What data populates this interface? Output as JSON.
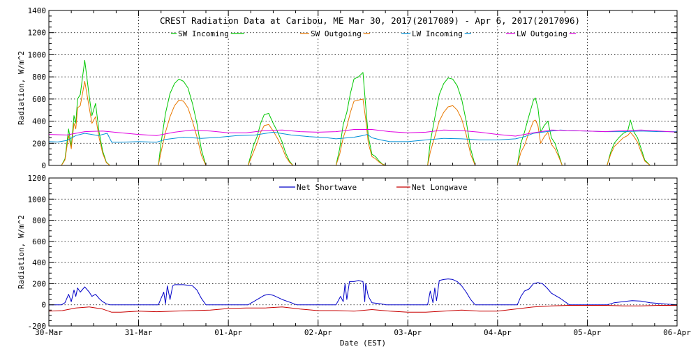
{
  "chart_data": {
    "title": "CREST Radiation Data at Caribou, ME   Mar 30, 2017(2017089) - Apr  6, 2017(2017096)",
    "xlabel": "Date (EST)",
    "x_unit": "day offset from 30-Mar",
    "x_tick_labels": [
      "30-Mar",
      "31-Mar",
      "01-Apr",
      "02-Apr",
      "03-Apr",
      "04-Apr",
      "05-Apr",
      "06-Apr"
    ],
    "xlim": [
      0,
      7
    ],
    "grid": true,
    "colors": {
      "sw_in": "#00c800",
      "sw_out": "#e87800",
      "lw_in": "#0090d8",
      "lw_out": "#e000e0",
      "net_sw": "#0000c8",
      "net_lw": "#c80000"
    },
    "panels": [
      {
        "type": "line",
        "ylabel": "Radiation, W/m^2",
        "ylim": [
          0,
          1400
        ],
        "yticks": [
          0,
          200,
          400,
          600,
          800,
          1000,
          1200,
          1400
        ],
        "legend_position": "top",
        "series": [
          {
            "name": "SW Incoming",
            "color_key": "sw_in",
            "x": [
              0.14,
              0.18,
              0.22,
              0.25,
              0.28,
              0.3,
              0.32,
              0.35,
              0.4,
              0.45,
              0.48,
              0.52,
              0.56,
              0.6,
              0.64,
              0.68,
              1.22,
              1.25,
              1.3,
              1.35,
              1.4,
              1.45,
              1.5,
              1.55,
              1.6,
              1.65,
              1.7,
              1.75,
              2.22,
              2.28,
              2.32,
              2.36,
              2.4,
              2.45,
              2.5,
              2.55,
              2.6,
              2.64,
              2.68,
              2.72,
              2.76,
              3.2,
              3.24,
              3.28,
              3.32,
              3.36,
              3.4,
              3.45,
              3.5,
              3.53,
              3.56,
              3.6,
              3.64,
              3.68,
              3.72,
              3.76,
              4.22,
              4.25,
              4.3,
              4.35,
              4.4,
              4.45,
              4.5,
              4.55,
              4.6,
              4.65,
              4.7,
              4.75,
              5.22,
              5.26,
              5.3,
              5.35,
              5.4,
              5.42,
              5.45,
              5.48,
              5.52,
              5.56,
              5.6,
              5.64,
              5.68,
              5.72,
              6.22,
              6.26,
              6.3,
              6.35,
              6.4,
              6.45,
              6.48,
              6.52,
              6.56,
              6.6,
              6.64,
              6.7
            ],
            "values": [
              0,
              60,
              330,
              170,
              450,
              380,
              600,
              640,
              950,
              620,
              450,
              560,
              300,
              130,
              30,
              0,
              0,
              200,
              470,
              650,
              740,
              780,
              760,
              700,
              560,
              380,
              140,
              0,
              0,
              180,
              260,
              380,
              460,
              470,
              380,
              300,
              210,
              110,
              40,
              0,
              0,
              0,
              150,
              370,
              480,
              650,
              780,
              800,
              840,
              540,
              260,
              100,
              80,
              40,
              10,
              0,
              0,
              210,
              430,
              640,
              740,
              790,
              780,
              720,
              600,
              400,
              150,
              0,
              0,
              200,
              300,
              450,
              590,
              610,
              520,
              300,
              360,
              400,
              250,
              200,
              100,
              0,
              0,
              120,
              200,
              250,
              290,
              310,
              410,
              300,
              250,
              150,
              50,
              0
            ]
          },
          {
            "name": "SW Outgoing",
            "color_key": "sw_out",
            "x": [
              0.14,
              0.18,
              0.22,
              0.25,
              0.28,
              0.3,
              0.32,
              0.35,
              0.4,
              0.45,
              0.48,
              0.52,
              0.56,
              0.6,
              0.64,
              0.68,
              1.22,
              1.25,
              1.3,
              1.35,
              1.4,
              1.45,
              1.5,
              1.55,
              1.6,
              1.65,
              1.7,
              1.75,
              2.22,
              2.28,
              2.32,
              2.36,
              2.4,
              2.45,
              2.5,
              2.55,
              2.6,
              2.64,
              2.68,
              2.72,
              2.76,
              3.2,
              3.24,
              3.28,
              3.32,
              3.36,
              3.4,
              3.45,
              3.5,
              3.53,
              3.56,
              3.6,
              3.64,
              3.68,
              3.72,
              3.76,
              4.22,
              4.25,
              4.3,
              4.35,
              4.4,
              4.45,
              4.5,
              4.55,
              4.6,
              4.65,
              4.7,
              4.75,
              5.22,
              5.26,
              5.3,
              5.35,
              5.4,
              5.42,
              5.45,
              5.48,
              5.52,
              5.56,
              5.6,
              5.64,
              5.68,
              5.72,
              6.22,
              6.26,
              6.3,
              6.35,
              6.4,
              6.45,
              6.48,
              6.52,
              6.56,
              6.6,
              6.64,
              6.7
            ],
            "values": [
              0,
              50,
              270,
              150,
              380,
              330,
              520,
              540,
              760,
              520,
              380,
              440,
              250,
              110,
              25,
              0,
              0,
              120,
              300,
              440,
              540,
              590,
              580,
              520,
              400,
              260,
              90,
              0,
              0,
              120,
              200,
              300,
              360,
              370,
              310,
              240,
              160,
              80,
              30,
              0,
              0,
              0,
              100,
              250,
              350,
              480,
              580,
              590,
              600,
              420,
              200,
              80,
              60,
              30,
              8,
              0,
              0,
              120,
              260,
              400,
              480,
              530,
              540,
              500,
              420,
              280,
              100,
              0,
              0,
              120,
              180,
              300,
              400,
              410,
              360,
              200,
              260,
              300,
              190,
              150,
              80,
              0,
              0,
              100,
              170,
              210,
              250,
              270,
              300,
              260,
              210,
              120,
              40,
              0
            ]
          },
          {
            "name": "LW Incoming",
            "color_key": "lw_in",
            "x": [
              0,
              0.1,
              0.2,
              0.3,
              0.4,
              0.55,
              0.65,
              0.7,
              0.8,
              1.0,
              1.2,
              1.3,
              1.5,
              1.7,
              1.9,
              2.1,
              2.3,
              2.5,
              2.7,
              2.9,
              3.1,
              3.2,
              3.4,
              3.5,
              3.55,
              3.6,
              3.7,
              3.8,
              4.0,
              4.2,
              4.4,
              4.6,
              4.8,
              5.0,
              5.2,
              5.3,
              5.4,
              5.5,
              5.6,
              5.7,
              5.8,
              6.0,
              6.2,
              6.4,
              6.6,
              6.8,
              7.0
            ],
            "values": [
              215,
              212,
              225,
              270,
              290,
              270,
              290,
              210,
              210,
              215,
              210,
              235,
              255,
              245,
              255,
              270,
              275,
              300,
              275,
              260,
              250,
              240,
              255,
              270,
              280,
              250,
              230,
              215,
              215,
              230,
              245,
              240,
              230,
              230,
              240,
              260,
              290,
              300,
              310,
              320,
              315,
              310,
              305,
              305,
              310,
              305,
              305
            ]
          },
          {
            "name": "LW Outgoing",
            "color_key": "lw_out",
            "x": [
              0,
              0.2,
              0.4,
              0.6,
              0.8,
              1.0,
              1.2,
              1.4,
              1.6,
              1.8,
              2.0,
              2.2,
              2.4,
              2.6,
              2.8,
              3.0,
              3.2,
              3.4,
              3.6,
              3.8,
              4.0,
              4.2,
              4.4,
              4.6,
              4.8,
              5.0,
              5.2,
              5.4,
              5.6,
              5.8,
              6.0,
              6.2,
              6.4,
              6.6,
              6.8,
              7.0
            ],
            "values": [
              280,
              275,
              305,
              310,
              295,
              280,
              270,
              300,
              320,
              310,
              295,
              295,
              315,
              320,
              305,
              300,
              305,
              325,
              325,
              305,
              295,
              300,
              320,
              315,
              300,
              280,
              265,
              295,
              320,
              315,
              310,
              305,
              315,
              320,
              310,
              300
            ]
          }
        ]
      },
      {
        "type": "line",
        "ylabel": "Radiation, W/m^2",
        "ylim": [
          -200,
          1200
        ],
        "yticks": [
          -200,
          0,
          200,
          400,
          600,
          800,
          1000,
          1200
        ],
        "legend_position": "top",
        "series": [
          {
            "name": "Net Shortwave",
            "color_key": "net_sw",
            "x": [
              0,
              0.14,
              0.18,
              0.22,
              0.25,
              0.28,
              0.3,
              0.32,
              0.35,
              0.4,
              0.45,
              0.48,
              0.52,
              0.56,
              0.6,
              0.64,
              0.68,
              1.22,
              1.25,
              1.28,
              1.3,
              1.32,
              1.35,
              1.38,
              1.4,
              1.5,
              1.6,
              1.65,
              1.7,
              1.75,
              2.22,
              2.3,
              2.4,
              2.45,
              2.5,
              2.55,
              2.6,
              2.7,
              2.76,
              3.2,
              3.25,
              3.28,
              3.3,
              3.32,
              3.35,
              3.4,
              3.45,
              3.5,
              3.52,
              3.53,
              3.56,
              3.6,
              3.7,
              3.76,
              4.22,
              4.25,
              4.28,
              4.3,
              4.32,
              4.35,
              4.4,
              4.45,
              4.5,
              4.55,
              4.6,
              4.65,
              4.7,
              4.75,
              5.22,
              5.26,
              5.3,
              5.35,
              5.4,
              5.45,
              5.5,
              5.55,
              5.6,
              5.7,
              5.8,
              6.22,
              6.3,
              6.4,
              6.45,
              6.5,
              6.6,
              6.7,
              7.0
            ],
            "values": [
              0,
              0,
              20,
              100,
              30,
              140,
              80,
              160,
              120,
              170,
              120,
              80,
              100,
              60,
              30,
              10,
              0,
              0,
              60,
              120,
              10,
              180,
              50,
              180,
              190,
              190,
              180,
              140,
              60,
              0,
              0,
              40,
              90,
              100,
              90,
              70,
              50,
              20,
              0,
              0,
              80,
              30,
              200,
              50,
              220,
              220,
              230,
              220,
              30,
              200,
              80,
              20,
              10,
              0,
              0,
              130,
              20,
              160,
              40,
              230,
              240,
              245,
              240,
              220,
              180,
              120,
              50,
              0,
              0,
              80,
              130,
              150,
              200,
              210,
              200,
              160,
              110,
              60,
              0,
              0,
              20,
              30,
              35,
              40,
              35,
              20,
              0
            ]
          },
          {
            "name": "Net Longwave",
            "color_key": "net_lw",
            "x": [
              0,
              0.15,
              0.3,
              0.45,
              0.6,
              0.7,
              0.8,
              1.0,
              1.2,
              1.4,
              1.6,
              1.8,
              2.0,
              2.2,
              2.4,
              2.6,
              2.8,
              3.0,
              3.2,
              3.4,
              3.6,
              3.8,
              4.0,
              4.2,
              4.4,
              4.6,
              4.8,
              5.0,
              5.2,
              5.4,
              5.6,
              5.8,
              6.0,
              6.2,
              6.4,
              6.6,
              6.8,
              7.0
            ],
            "values": [
              -60,
              -55,
              -30,
              -20,
              -40,
              -70,
              -70,
              -60,
              -65,
              -60,
              -55,
              -50,
              -35,
              -30,
              -30,
              -20,
              -40,
              -55,
              -55,
              -60,
              -45,
              -60,
              -70,
              -70,
              -60,
              -50,
              -60,
              -60,
              -40,
              -20,
              -10,
              -5,
              -5,
              -5,
              -10,
              -10,
              -5,
              -5
            ]
          }
        ]
      }
    ]
  }
}
